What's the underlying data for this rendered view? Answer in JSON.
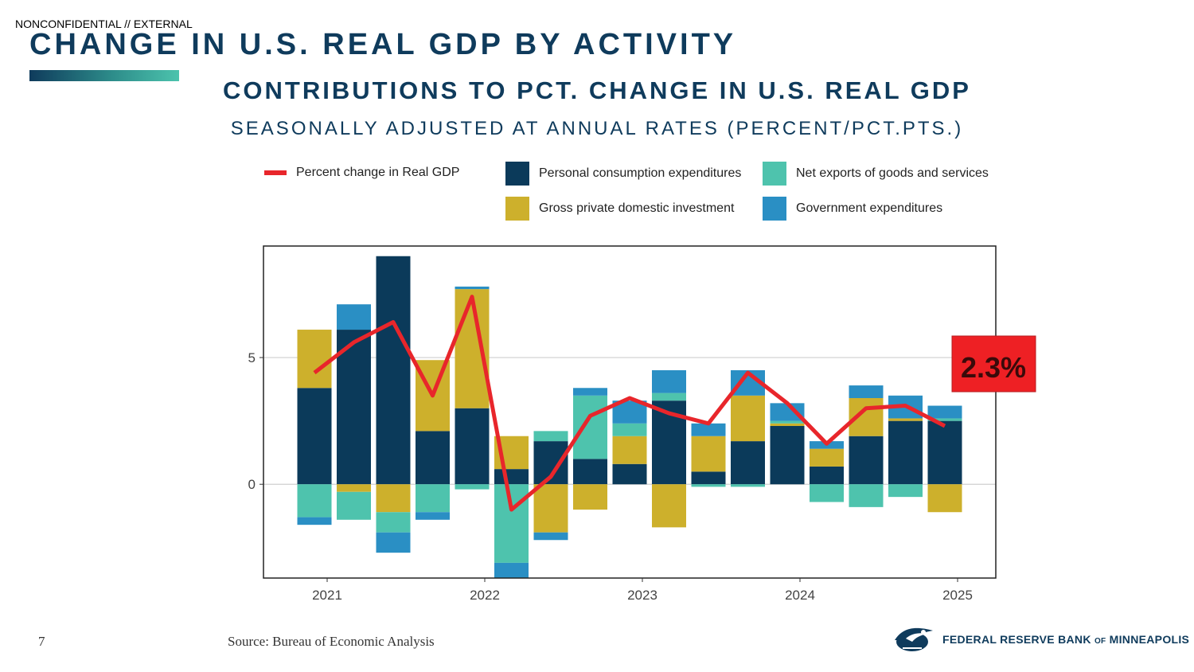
{
  "header": {
    "classification": "NONCONFIDENTIAL // EXTERNAL",
    "title": "CHANGE IN U.S. REAL GDP BY ACTIVITY"
  },
  "footer": {
    "page_number": "7",
    "source": "Source: Bureau of Economic Analysis",
    "logo_text": "FEDERAL RESERVE BANK",
    "logo_of": "OF",
    "logo_city": "MINNEAPOLIS"
  },
  "colors": {
    "pce": "#0b3a5a",
    "gpdi": "#cdb02c",
    "net_exports": "#4ec3ad",
    "government": "#2a8fc4",
    "gdp_line": "#e8262b",
    "callout_bg": "#ee2024"
  },
  "chart_data": {
    "type": "bar",
    "title": "CONTRIBUTIONS TO PCT. CHANGE IN U.S. REAL GDP",
    "subtitle": "SEASONALLY ADJUSTED AT ANNUAL RATES (PERCENT/PCT.PTS.)",
    "stacked": true,
    "x": [
      "2020-Q4",
      "2021-Q1",
      "2021-Q2",
      "2021-Q3",
      "2021-Q4",
      "2022-Q1",
      "2022-Q2",
      "2022-Q3",
      "2022-Q4",
      "2023-Q1",
      "2023-Q2",
      "2023-Q3",
      "2023-Q4",
      "2024-Q1",
      "2024-Q2",
      "2024-Q3",
      "2024-Q4"
    ],
    "x_ticks": [
      "2021",
      "2022",
      "2023",
      "2024",
      "2025"
    ],
    "y_ticks": [
      0,
      5
    ],
    "ylim": [
      -3.7,
      9.4
    ],
    "grid": "horizontal at y ticks",
    "legend_position": "top",
    "series": [
      {
        "name": "Personal consumption expenditures",
        "key": "pce",
        "values": [
          3.8,
          6.1,
          9.0,
          2.1,
          3.0,
          0.6,
          1.7,
          1.0,
          0.8,
          3.3,
          0.5,
          1.7,
          2.3,
          0.7,
          1.9,
          2.5,
          2.5
        ]
      },
      {
        "name": "Gross private domestic investment",
        "key": "gpdi",
        "values": [
          2.3,
          -0.3,
          -1.1,
          2.8,
          4.7,
          1.3,
          -1.9,
          -1.0,
          1.1,
          -1.7,
          1.4,
          1.8,
          0.1,
          0.7,
          1.5,
          0.1,
          -1.1
        ]
      },
      {
        "name": "Net exports of goods and services",
        "key": "net_exports",
        "values": [
          -1.3,
          -1.1,
          -0.8,
          -1.1,
          -0.2,
          -3.1,
          0.4,
          2.5,
          0.5,
          0.3,
          -0.1,
          -0.1,
          0.1,
          -0.7,
          -0.9,
          -0.5,
          0.1
        ]
      },
      {
        "name": "Government expenditures",
        "key": "government",
        "values": [
          -0.3,
          1.0,
          -0.8,
          -0.3,
          0.1,
          -0.6,
          -0.3,
          0.3,
          0.9,
          0.9,
          0.5,
          1.0,
          0.7,
          0.3,
          0.5,
          0.9,
          0.5
        ]
      }
    ],
    "line": {
      "name": "Percent change in Real GDP",
      "values": [
        4.4,
        5.6,
        6.4,
        3.5,
        7.4,
        -1.0,
        0.3,
        2.7,
        3.4,
        2.8,
        2.4,
        4.4,
        3.2,
        1.6,
        3.0,
        3.1,
        2.3
      ]
    },
    "callout": "2.3%"
  }
}
